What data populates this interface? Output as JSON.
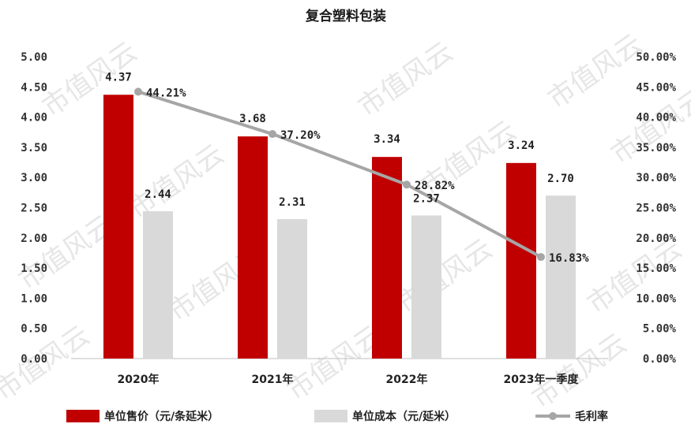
{
  "chart_data": {
    "type": "bar+line",
    "title": "复合塑料包装",
    "categories": [
      "2020年",
      "2021年",
      "2022年",
      "2023年一季度"
    ],
    "series": [
      {
        "name": "单位售价（元/条延米）",
        "type": "bar",
        "axis": "left",
        "color": "#c00000",
        "values": [
          4.37,
          3.68,
          3.34,
          3.24
        ],
        "labels": [
          "4.37",
          "3.68",
          "3.34",
          "3.24"
        ]
      },
      {
        "name": "单位成本（元/延米）",
        "type": "bar",
        "axis": "left",
        "color": "#d9d9d9",
        "values": [
          2.44,
          2.31,
          2.37,
          2.7
        ],
        "labels": [
          "2.44",
          "2.31",
          "2.37",
          "2.70"
        ]
      },
      {
        "name": "毛利率",
        "type": "line",
        "axis": "right",
        "color": "#a6a6a6",
        "values": [
          44.21,
          37.2,
          28.82,
          16.83
        ],
        "labels": [
          "44.21%",
          "37.20%",
          "28.82%",
          "16.83%"
        ]
      }
    ],
    "y_left": {
      "min": 0,
      "max": 5,
      "ticks": [
        "0.00",
        "0.50",
        "1.00",
        "1.50",
        "2.00",
        "2.50",
        "3.00",
        "3.50",
        "4.00",
        "4.50",
        "5.00"
      ]
    },
    "y_right": {
      "min": 0,
      "max": 50,
      "ticks": [
        "0.00%",
        "5.00%",
        "10.00%",
        "15.00%",
        "20.00%",
        "25.00%",
        "30.00%",
        "35.00%",
        "40.00%",
        "45.00%",
        "50.00%"
      ]
    },
    "grid": false,
    "legend_position": "bottom",
    "watermark": "市值风云"
  }
}
